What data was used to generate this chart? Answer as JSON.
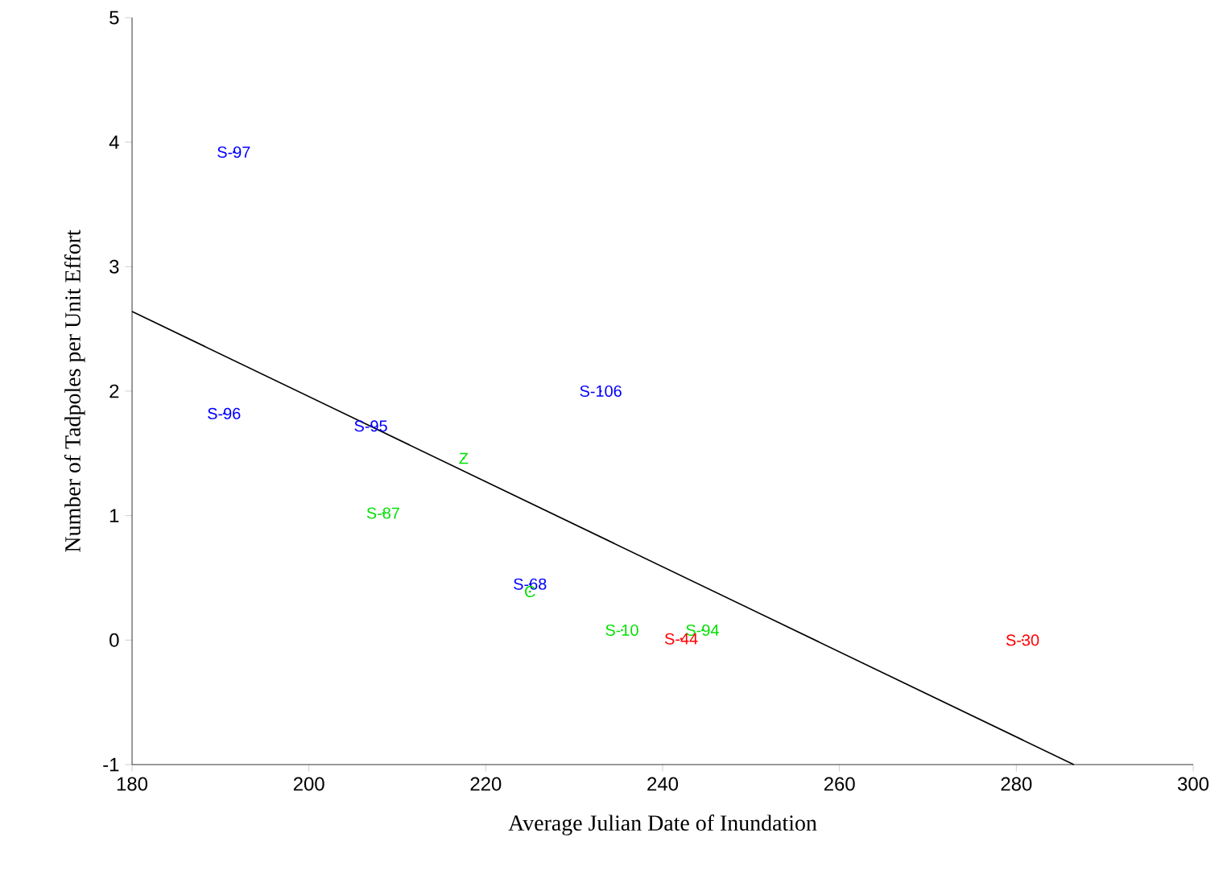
{
  "chart_data": {
    "type": "scatter",
    "xlabel": "Average Julian Date of Inundation",
    "ylabel": "Number of Tadpoles per Unit Effort",
    "xlim": [
      180,
      300
    ],
    "xticks": [
      180,
      200,
      220,
      240,
      260,
      280,
      300
    ],
    "ylim": [
      -1,
      5
    ],
    "yticks": [
      -1,
      0,
      1,
      2,
      3,
      4,
      5
    ],
    "grid": false,
    "series": [
      {
        "color": "#0000ff",
        "x": [
          191.5,
          190.4,
          207,
          233,
          225
        ],
        "values": [
          3.92,
          1.82,
          1.72,
          2.0,
          0.45
        ],
        "value_labels": [
          "S-97",
          "S-96",
          "S-95",
          "S-106",
          "S-68"
        ]
      },
      {
        "color": "#00e000",
        "x": [
          217.5,
          208.4,
          225,
          235.4,
          244.5
        ],
        "values": [
          1.46,
          1.02,
          0.39,
          0.08,
          0.08
        ],
        "value_labels": [
          "Z",
          "S-87",
          "C",
          "S-10",
          "S-94"
        ]
      },
      {
        "color": "#ff0000",
        "x": [
          242.1,
          280.7
        ],
        "values": [
          0.01,
          0.0
        ],
        "value_labels": [
          "S-44",
          "S-30"
        ]
      },
      {
        "type": "line",
        "color": "#000000",
        "x": [
          180,
          286.5
        ],
        "values": [
          2.64,
          -1
        ]
      }
    ]
  }
}
